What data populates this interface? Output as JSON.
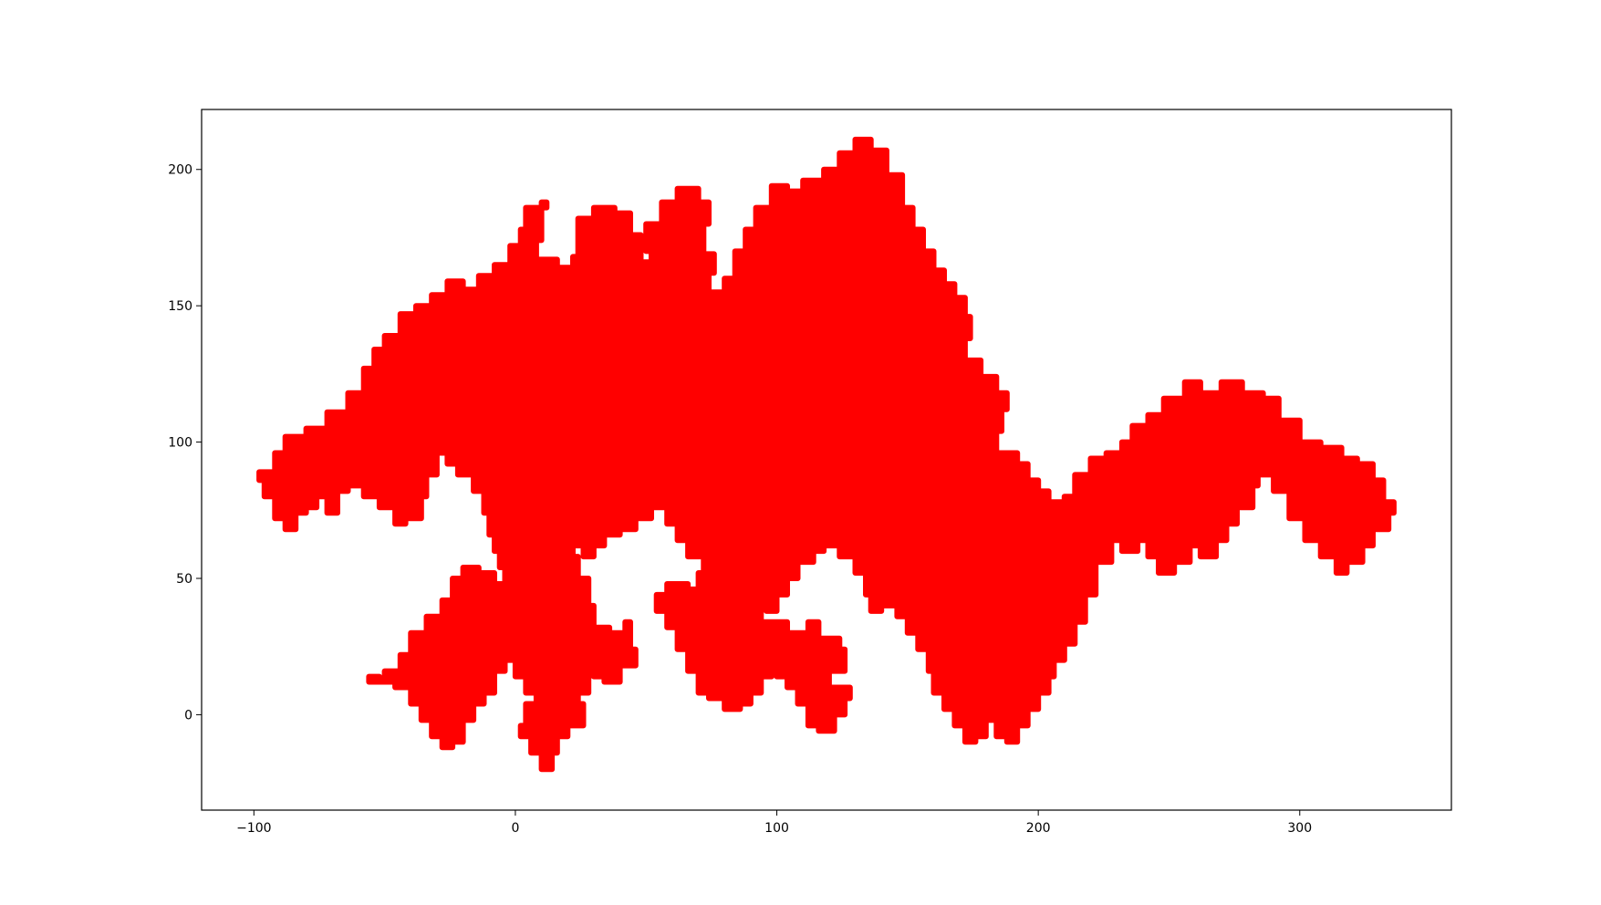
{
  "chart_data": {
    "type": "area",
    "title": "",
    "xlabel": "",
    "ylabel": "",
    "xlim": [
      -120,
      358
    ],
    "ylim": [
      -35,
      222
    ],
    "x_ticks": [
      -100,
      0,
      100,
      200,
      300
    ],
    "x_tick_labels": [
      "−100",
      "0",
      "100",
      "200",
      "300"
    ],
    "y_ticks": [
      0,
      50,
      100,
      150,
      200
    ],
    "y_tick_labels": [
      "0",
      "50",
      "100",
      "150",
      "200"
    ],
    "grid": false,
    "legend": "none",
    "colors": {
      "fill": "#ff0000",
      "edge_accents": [
        "#000000",
        "#0000ff",
        "#008000",
        "#ff8c00",
        "#800080"
      ]
    },
    "series": [
      {
        "values": [
          [
            -98,
            89
          ],
          [
            -92,
            96
          ],
          [
            -88,
            102
          ],
          [
            -80,
            105
          ],
          [
            -72,
            111
          ],
          [
            -64,
            118
          ],
          [
            -58,
            127
          ],
          [
            -54,
            134
          ],
          [
            -50,
            139
          ],
          [
            -44,
            147
          ],
          [
            -38,
            150
          ],
          [
            -32,
            154
          ],
          [
            -26,
            159
          ],
          [
            -20,
            156
          ],
          [
            -14,
            161
          ],
          [
            -8,
            165
          ],
          [
            -2,
            172
          ],
          [
            2,
            178
          ],
          [
            4,
            186
          ],
          [
            12,
            188
          ],
          [
            10,
            174
          ],
          [
            8,
            167
          ],
          [
            16,
            164
          ],
          [
            22,
            160
          ],
          [
            28,
            158
          ],
          [
            22,
            168
          ],
          [
            24,
            182
          ],
          [
            30,
            186
          ],
          [
            38,
            184
          ],
          [
            44,
            176
          ],
          [
            48,
            166
          ],
          [
            52,
            170
          ],
          [
            50,
            180
          ],
          [
            56,
            188
          ],
          [
            62,
            193
          ],
          [
            70,
            188
          ],
          [
            74,
            180
          ],
          [
            72,
            169
          ],
          [
            76,
            162
          ],
          [
            74,
            155
          ],
          [
            80,
            160
          ],
          [
            84,
            170
          ],
          [
            88,
            178
          ],
          [
            92,
            186
          ],
          [
            98,
            194
          ],
          [
            104,
            192
          ],
          [
            110,
            196
          ],
          [
            118,
            200
          ],
          [
            124,
            206
          ],
          [
            130,
            211
          ],
          [
            136,
            207
          ],
          [
            142,
            198
          ],
          [
            148,
            186
          ],
          [
            152,
            178
          ],
          [
            156,
            170
          ],
          [
            160,
            163
          ],
          [
            164,
            158
          ],
          [
            168,
            153
          ],
          [
            172,
            146
          ],
          [
            174,
            138
          ],
          [
            172,
            130
          ],
          [
            178,
            124
          ],
          [
            184,
            118
          ],
          [
            188,
            112
          ],
          [
            186,
            104
          ],
          [
            184,
            96
          ],
          [
            192,
            92
          ],
          [
            196,
            86
          ],
          [
            200,
            82
          ],
          [
            204,
            78
          ],
          [
            210,
            80
          ],
          [
            214,
            88
          ],
          [
            220,
            94
          ],
          [
            226,
            96
          ],
          [
            232,
            100
          ],
          [
            236,
            106
          ],
          [
            242,
            110
          ],
          [
            248,
            116
          ],
          [
            256,
            122
          ],
          [
            262,
            118
          ],
          [
            270,
            122
          ],
          [
            278,
            118
          ],
          [
            286,
            116
          ],
          [
            292,
            108
          ],
          [
            300,
            100
          ],
          [
            308,
            98
          ],
          [
            316,
            94
          ],
          [
            322,
            92
          ],
          [
            328,
            86
          ],
          [
            332,
            78
          ],
          [
            336,
            74
          ],
          [
            334,
            68
          ],
          [
            328,
            62
          ],
          [
            324,
            56
          ],
          [
            318,
            52
          ],
          [
            314,
            58
          ],
          [
            308,
            64
          ],
          [
            302,
            72
          ],
          [
            296,
            82
          ],
          [
            290,
            88
          ],
          [
            284,
            84
          ],
          [
            282,
            76
          ],
          [
            276,
            70
          ],
          [
            272,
            64
          ],
          [
            268,
            58
          ],
          [
            262,
            62
          ],
          [
            258,
            56
          ],
          [
            252,
            52
          ],
          [
            246,
            58
          ],
          [
            242,
            64
          ],
          [
            238,
            60
          ],
          [
            232,
            64
          ],
          [
            228,
            56
          ],
          [
            222,
            44
          ],
          [
            218,
            34
          ],
          [
            214,
            26
          ],
          [
            210,
            20
          ],
          [
            206,
            14
          ],
          [
            204,
            8
          ],
          [
            200,
            2
          ],
          [
            196,
            -4
          ],
          [
            192,
            -10
          ],
          [
            188,
            -8
          ],
          [
            184,
            -2
          ],
          [
            180,
            -8
          ],
          [
            176,
            -10
          ],
          [
            172,
            -4
          ],
          [
            168,
            2
          ],
          [
            164,
            8
          ],
          [
            160,
            16
          ],
          [
            158,
            24
          ],
          [
            154,
            30
          ],
          [
            150,
            36
          ],
          [
            146,
            40
          ],
          [
            140,
            38
          ],
          [
            136,
            44
          ],
          [
            134,
            52
          ],
          [
            130,
            58
          ],
          [
            124,
            62
          ],
          [
            118,
            60
          ],
          [
            114,
            56
          ],
          [
            108,
            50
          ],
          [
            104,
            44
          ],
          [
            100,
            38
          ],
          [
            96,
            42
          ],
          [
            94,
            34
          ],
          [
            104,
            30
          ],
          [
            112,
            34
          ],
          [
            116,
            28
          ],
          [
            124,
            24
          ],
          [
            126,
            16
          ],
          [
            120,
            10
          ],
          [
            128,
            6
          ],
          [
            126,
            0
          ],
          [
            122,
            -6
          ],
          [
            116,
            -4
          ],
          [
            112,
            4
          ],
          [
            108,
            10
          ],
          [
            104,
            14
          ],
          [
            100,
            20
          ],
          [
            98,
            14
          ],
          [
            94,
            8
          ],
          [
            90,
            4
          ],
          [
            86,
            2
          ],
          [
            80,
            6
          ],
          [
            74,
            8
          ],
          [
            70,
            16
          ],
          [
            66,
            24
          ],
          [
            62,
            32
          ],
          [
            58,
            38
          ],
          [
            54,
            44
          ],
          [
            58,
            48
          ],
          [
            66,
            46
          ],
          [
            70,
            52
          ],
          [
            72,
            58
          ],
          [
            66,
            64
          ],
          [
            62,
            70
          ],
          [
            58,
            76
          ],
          [
            52,
            72
          ],
          [
            46,
            68
          ],
          [
            40,
            66
          ],
          [
            34,
            62
          ],
          [
            30,
            58
          ],
          [
            26,
            62
          ],
          [
            22,
            58
          ],
          [
            24,
            50
          ],
          [
            28,
            40
          ],
          [
            30,
            32
          ],
          [
            36,
            30
          ],
          [
            42,
            34
          ],
          [
            44,
            24
          ],
          [
            46,
            18
          ],
          [
            40,
            12
          ],
          [
            34,
            14
          ],
          [
            30,
            18
          ],
          [
            28,
            8
          ],
          [
            24,
            4
          ],
          [
            26,
            -4
          ],
          [
            20,
            -8
          ],
          [
            16,
            -14
          ],
          [
            14,
            -20
          ],
          [
            10,
            -14
          ],
          [
            6,
            -8
          ],
          [
            2,
            -4
          ],
          [
            4,
            4
          ],
          [
            8,
            8
          ],
          [
            4,
            14
          ],
          [
            0,
            20
          ],
          [
            -4,
            16
          ],
          [
            -8,
            8
          ],
          [
            -12,
            4
          ],
          [
            -16,
            -2
          ],
          [
            -20,
            -10
          ],
          [
            -24,
            -12
          ],
          [
            -28,
            -8
          ],
          [
            -32,
            -2
          ],
          [
            -36,
            4
          ],
          [
            -40,
            10
          ],
          [
            -46,
            12
          ],
          [
            -52,
            14
          ],
          [
            -56,
            12
          ],
          [
            -50,
            16
          ],
          [
            -44,
            22
          ],
          [
            -40,
            30
          ],
          [
            -34,
            36
          ],
          [
            -28,
            42
          ],
          [
            -24,
            50
          ],
          [
            -20,
            54
          ],
          [
            -14,
            52
          ],
          [
            -8,
            48
          ],
          [
            -4,
            54
          ],
          [
            -6,
            60
          ],
          [
            -8,
            66
          ],
          [
            -10,
            74
          ],
          [
            -12,
            82
          ],
          [
            -16,
            88
          ],
          [
            -22,
            92
          ],
          [
            -26,
            96
          ],
          [
            -30,
            88
          ],
          [
            -34,
            80
          ],
          [
            -36,
            72
          ],
          [
            -42,
            70
          ],
          [
            -46,
            76
          ],
          [
            -52,
            80
          ],
          [
            -58,
            84
          ],
          [
            -64,
            82
          ],
          [
            -68,
            74
          ],
          [
            -72,
            80
          ],
          [
            -76,
            76
          ],
          [
            -80,
            74
          ],
          [
            -84,
            68
          ],
          [
            -88,
            72
          ],
          [
            -92,
            80
          ],
          [
            -96,
            86
          ]
        ]
      }
    ]
  }
}
